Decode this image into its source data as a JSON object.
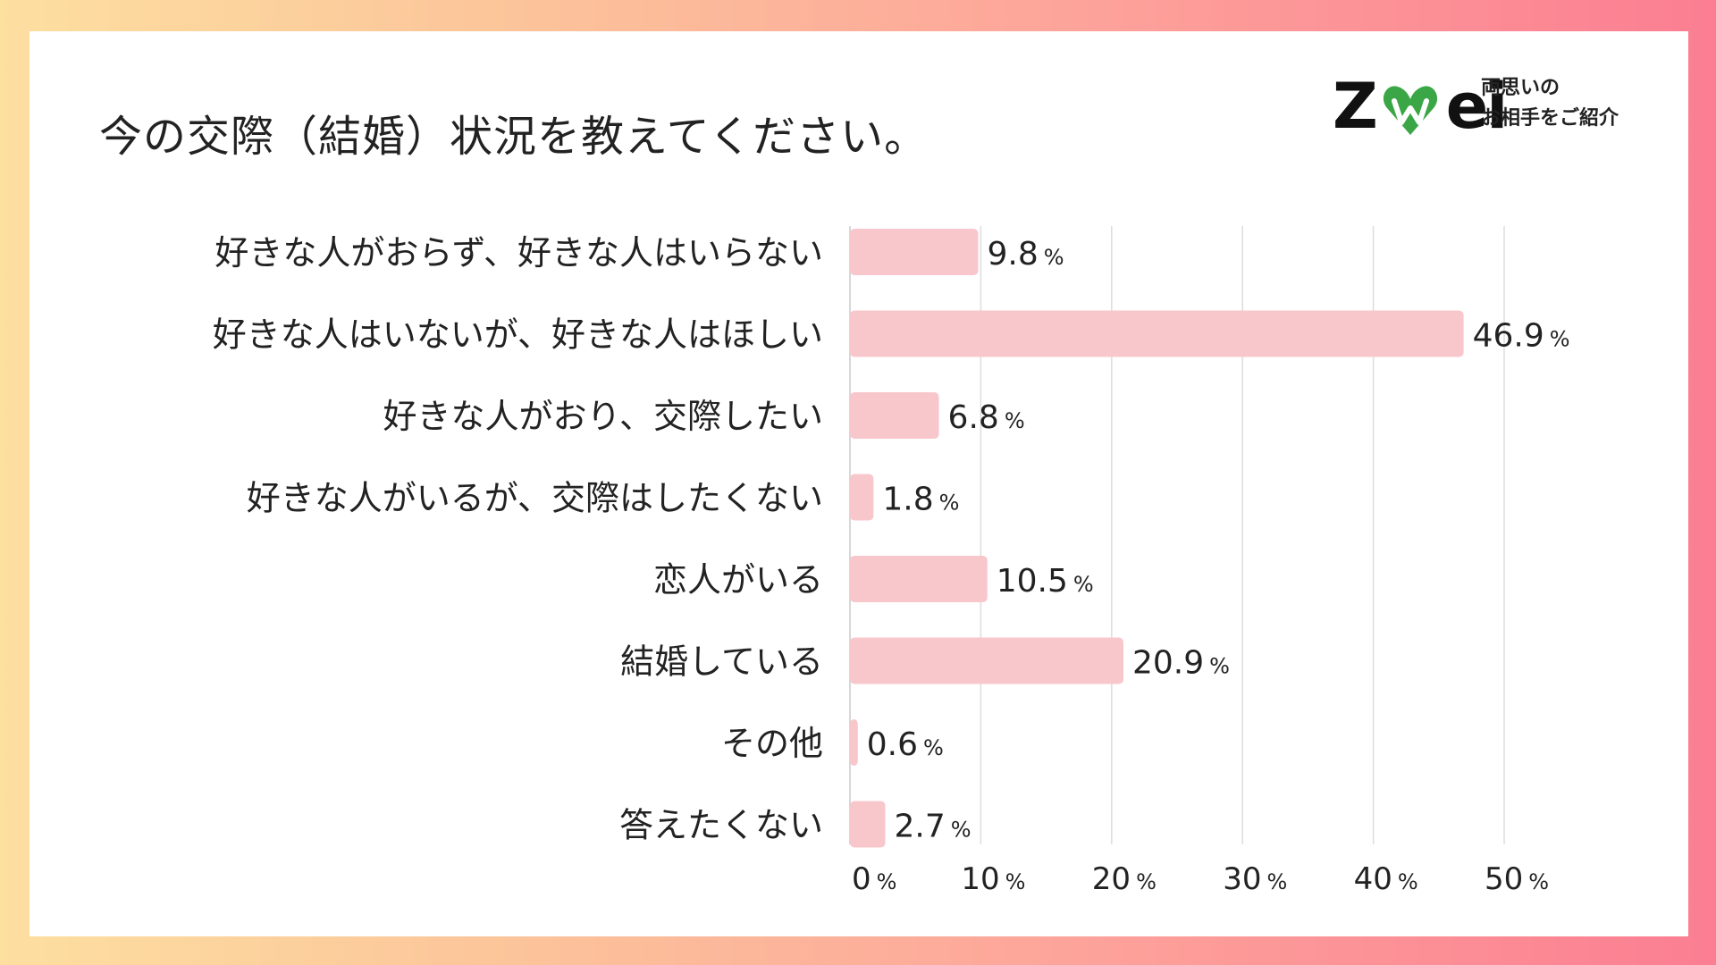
{
  "brand": {
    "logo_text_left": "Z",
    "logo_text_right": "ei",
    "tagline_line1": "両思いの",
    "tagline_line2": "お相手をご紹介",
    "heart_color": "#3BA646"
  },
  "chart_data": {
    "type": "bar",
    "orientation": "horizontal",
    "title": "今の交際（結婚）状況を教えてください。",
    "categories": [
      "好きな人がおらず、好きな人はいらない",
      "好きな人はいないが、好きな人はほしい",
      "好きな人がおり、交際したい",
      "好きな人がいるが、交際はしたくない",
      "恋人がいる",
      "結婚している",
      "その他",
      "答えたくない"
    ],
    "values": [
      9.8,
      46.9,
      6.8,
      1.8,
      10.5,
      20.9,
      0.6,
      2.7
    ],
    "value_labels": [
      "9.8",
      "46.9",
      "6.8",
      "1.8",
      "10.5",
      "20.9",
      "0.6",
      "2.7"
    ],
    "value_unit": "%",
    "xlim": [
      0,
      50
    ],
    "xticks": [
      0,
      10,
      20,
      30,
      40,
      50
    ],
    "xtick_labels": [
      "0",
      "10",
      "20",
      "30",
      "40",
      "50"
    ],
    "xtick_unit": "%",
    "grid": true,
    "bar_color": "#F8C7CC",
    "grid_color": "#DDDDDD"
  }
}
